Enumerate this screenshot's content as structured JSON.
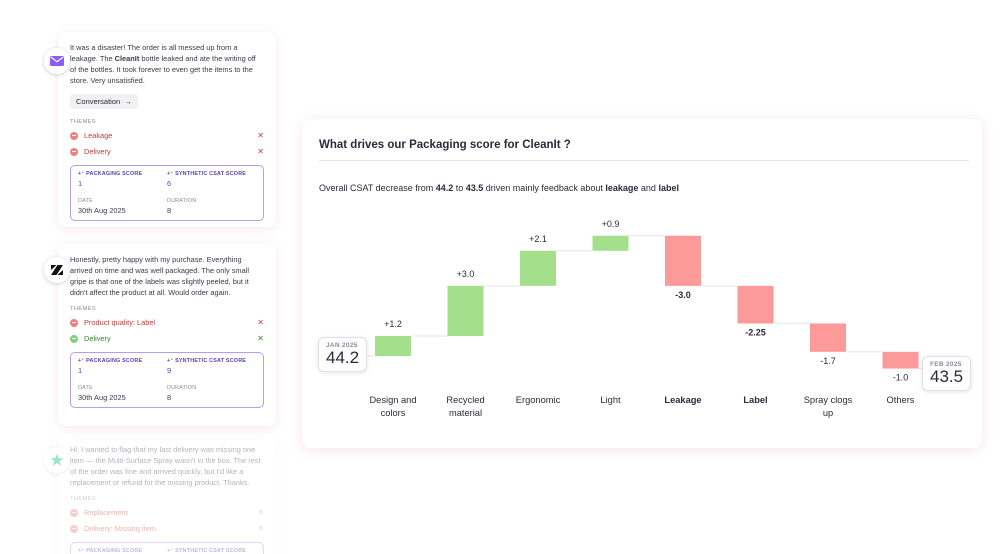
{
  "cards": [
    {
      "source_icon": "mail-icon",
      "message_parts": [
        "It was a disaster! The order is all messed up from a leakage. The ",
        "CleanIt",
        " bottle leaked and ate the writing off of the bottles. It took forever to even get the items to the store. Very unsatisfied."
      ],
      "conversation_label": "Conversation",
      "themes_label": "THEMES",
      "themes": [
        {
          "label": "Leakage",
          "sentiment": "negative"
        },
        {
          "label": "Delivery",
          "sentiment": "negative"
        }
      ],
      "packaging_score_label": "+⁺ PACKAGING SCORE",
      "packaging_score": "1",
      "csat_label": "+⁺ SYNTHETIC CSAT SCORE",
      "csat": "6",
      "date_label": "DATE",
      "date": "30th Aug 2025",
      "duration_label": "DURATION",
      "duration": "8"
    },
    {
      "source_icon": "zendesk-icon",
      "message": "Honestly, pretty happy with my purchase. Everything arrived on time and was well packaged. The only small gripe is that one of the labels was slightly peeled, but it didn't affect the product at all. Would order again.",
      "themes_label": "THEMES",
      "themes": [
        {
          "label": "Product quality: Label",
          "sentiment": "negative"
        },
        {
          "label": "Delivery",
          "sentiment": "positive"
        }
      ],
      "packaging_score_label": "+⁺ PACKAGING SCORE",
      "packaging_score": "1",
      "csat_label": "+⁺ SYNTHETIC CSAT SCORE",
      "csat": "9",
      "date_label": "DATE",
      "date": "30th Aug 2025",
      "duration_label": "DURATION",
      "duration": "8"
    },
    {
      "source_icon": "trustpilot-star-icon",
      "message": "Hi, I wanted to flag that my last delivery was missing one item — the Multi-Surface Spray wasn't in the box. The rest of the order was fine and arrived quickly, but I'd like a replacement or refund for the missing product. Thanks.",
      "themes_label": "THEMES",
      "themes": [
        {
          "label": "Replacement",
          "sentiment": "negative"
        },
        {
          "label": "Delivery: Missing item",
          "sentiment": "negative"
        }
      ],
      "packaging_score_label": "+⁺ PACKAGING SCORE",
      "csat_label": "+⁺ SYNTHETIC CSAT SCORE"
    }
  ],
  "panel": {
    "title": "What drives our Packaging score for CleanIt ?",
    "subtitle_parts": [
      "Overall CSAT decrease from ",
      "44.2",
      " to ",
      "43.5",
      " driven mainly feedback about ",
      "leakage",
      " and ",
      "label"
    ]
  },
  "chart_data": {
    "type": "waterfall",
    "start": {
      "label": "JAN 2025",
      "value": 44.2
    },
    "end": {
      "label": "FEB 2025",
      "value": 43.5
    },
    "steps": [
      {
        "category": "Design and colors",
        "delta": 1.2,
        "label": "+1.2",
        "bold": false
      },
      {
        "category": "Recycled material",
        "delta": 3.0,
        "label": "+3.0",
        "bold": false
      },
      {
        "category": "Ergonomic",
        "delta": 2.1,
        "label": "+2.1",
        "bold": false
      },
      {
        "category": "Light",
        "delta": 0.9,
        "label": "+0.9",
        "bold": false
      },
      {
        "category": "Leakage",
        "delta": -3.0,
        "label": "-3.0",
        "bold": true
      },
      {
        "category": "Label",
        "delta": -2.25,
        "label": "-2.25",
        "bold": true
      },
      {
        "category": "Spray clogs up",
        "delta": -1.7,
        "label": "-1.7",
        "bold": false
      },
      {
        "category": "Others",
        "delta": -1.0,
        "label": "-1.0",
        "bold": false
      }
    ],
    "colors": {
      "positive": "#a4e08c",
      "negative": "#fb9a98",
      "connector": "#e6e6ea"
    }
  }
}
